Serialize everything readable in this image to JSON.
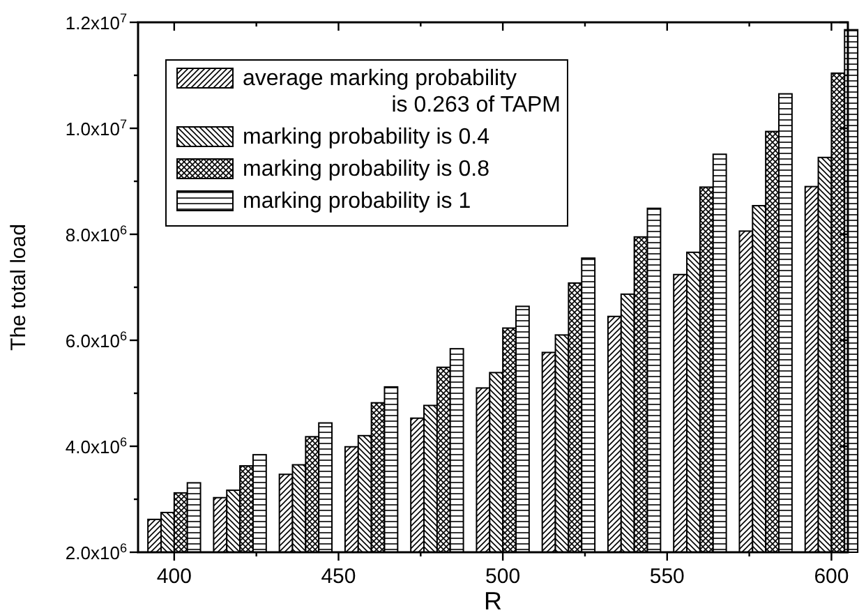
{
  "chart_data": {
    "type": "bar",
    "xlabel": "R",
    "ylabel": "The total load",
    "x": [
      400,
      420,
      440,
      460,
      480,
      500,
      520,
      540,
      560,
      580,
      600
    ],
    "xlim": [
      389,
      605
    ],
    "xticks": [
      400,
      {
        "value": 425,
        "label": null
      },
      450,
      {
        "value": 475,
        "label": null
      },
      500,
      {
        "value": 525,
        "label": null
      },
      550,
      {
        "value": 575,
        "label": null
      },
      600
    ],
    "ylim": [
      2000000,
      12000000
    ],
    "yticks": [
      {
        "value": 2000000,
        "label": "2.0x10$^{6}$"
      },
      {
        "value": 3000000,
        "label": null
      },
      {
        "value": 4000000,
        "label": "4.0x10$^{6}$"
      },
      {
        "value": 5000000,
        "label": null
      },
      {
        "value": 6000000,
        "label": "6.0x10$^{6}$"
      },
      {
        "value": 7000000,
        "label": null
      },
      {
        "value": 8000000,
        "label": "8.0x10$^{6}$"
      },
      {
        "value": 9000000,
        "label": null
      },
      {
        "value": 10000000,
        "label": "1.0x10$^{7}$"
      },
      {
        "value": 11000000,
        "label": null
      },
      {
        "value": 12000000,
        "label": "1.2x10$^{7}$"
      }
    ],
    "grid": false,
    "legend": "top left",
    "series": [
      {
        "name": "average marking probability is 0.263 of TAPM",
        "color": "#000000",
        "values": [
          2620000,
          3030000,
          3470000,
          3990000,
          4530000,
          5100000,
          5770000,
          6450000,
          7240000,
          8060000,
          8900000
        ]
      },
      {
        "name": "marking probability is 0.4",
        "color": "#000000",
        "values": [
          2750000,
          3170000,
          3650000,
          4200000,
          4770000,
          5390000,
          6100000,
          6870000,
          7660000,
          8540000,
          9450000
        ]
      },
      {
        "name": "marking probability is 0.8",
        "color": "#000000",
        "values": [
          3120000,
          3630000,
          4180000,
          4820000,
          5490000,
          6230000,
          7080000,
          7950000,
          8890000,
          9940000,
          11040000
        ]
      },
      {
        "name": "marking probability is 1",
        "color": "#000000",
        "values": [
          3310000,
          3840000,
          4440000,
          5120000,
          5840000,
          6640000,
          7550000,
          8490000,
          9510000,
          10650000,
          11860000
        ]
      }
    ]
  }
}
